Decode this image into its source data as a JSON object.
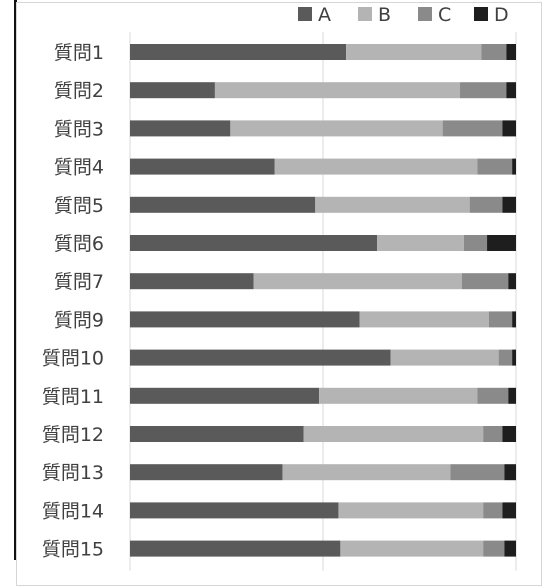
{
  "chart_data": {
    "type": "bar",
    "orientation": "horizontal",
    "stacked": "percent",
    "categories": [
      "質問1",
      "質問2",
      "質問3",
      "質問4",
      "質問5",
      "質問6",
      "質問7",
      "質問9",
      "質問10",
      "質問11",
      "質問12",
      "質問13",
      "質問14",
      "質問15"
    ],
    "series": [
      {
        "name": "A",
        "color": "#5a5a5a",
        "values": [
          56,
          22,
          26,
          37.5,
          48,
          64,
          32,
          59.5,
          67.5,
          49,
          45,
          39.5,
          54,
          54.5
        ]
      },
      {
        "name": "B",
        "color": "#b4b4b4",
        "values": [
          35,
          63.5,
          55,
          52.5,
          40,
          22.5,
          54,
          33.5,
          28,
          41,
          46.5,
          43.5,
          37.5,
          37
        ]
      },
      {
        "name": "C",
        "color": "#8a8a8a",
        "values": [
          6.5,
          12,
          15.5,
          9,
          8.5,
          6,
          12,
          6,
          3.5,
          8,
          5,
          14,
          5,
          5.5
        ]
      },
      {
        "name": "D",
        "color": "#1e1e1e",
        "values": [
          2.5,
          2.5,
          3.5,
          1,
          3.5,
          7.5,
          2,
          1,
          1,
          2,
          3.5,
          3,
          3.5,
          3
        ]
      }
    ],
    "xlim": [
      0,
      100
    ],
    "grid": true,
    "legend_position": "top-right"
  }
}
